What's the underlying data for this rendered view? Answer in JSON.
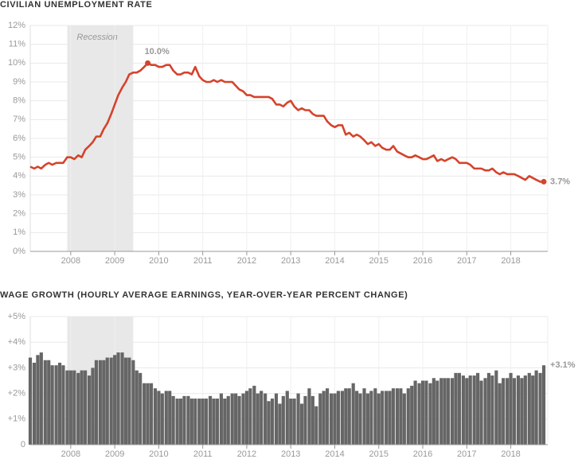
{
  "chart_data": [
    {
      "type": "line",
      "title": "CIVILIAN UNEMPLOYMENT RATE",
      "color": "#d5432b",
      "shading": {
        "label": "Recession",
        "x": [
          2007.92,
          2009.42
        ]
      },
      "x": [
        2007.08,
        2007.17,
        2007.25,
        2007.33,
        2007.42,
        2007.5,
        2007.58,
        2007.67,
        2007.75,
        2007.83,
        2007.92,
        2008,
        2008.08,
        2008.17,
        2008.25,
        2008.33,
        2008.42,
        2008.5,
        2008.58,
        2008.67,
        2008.75,
        2008.83,
        2008.92,
        2009,
        2009.08,
        2009.17,
        2009.25,
        2009.33,
        2009.42,
        2009.5,
        2009.58,
        2009.67,
        2009.75,
        2009.83,
        2009.92,
        2010,
        2010.08,
        2010.17,
        2010.25,
        2010.33,
        2010.42,
        2010.5,
        2010.58,
        2010.67,
        2010.75,
        2010.83,
        2010.92,
        2011,
        2011.08,
        2011.17,
        2011.25,
        2011.33,
        2011.42,
        2011.5,
        2011.58,
        2011.67,
        2011.75,
        2011.83,
        2011.92,
        2012,
        2012.08,
        2012.17,
        2012.25,
        2012.33,
        2012.42,
        2012.5,
        2012.58,
        2012.67,
        2012.75,
        2012.83,
        2012.92,
        2013,
        2013.08,
        2013.17,
        2013.25,
        2013.33,
        2013.42,
        2013.5,
        2013.58,
        2013.67,
        2013.75,
        2013.83,
        2013.92,
        2014,
        2014.08,
        2014.17,
        2014.25,
        2014.33,
        2014.42,
        2014.5,
        2014.58,
        2014.67,
        2014.75,
        2014.83,
        2014.92,
        2015,
        2015.08,
        2015.17,
        2015.25,
        2015.33,
        2015.42,
        2015.5,
        2015.58,
        2015.67,
        2015.75,
        2015.83,
        2015.92,
        2016,
        2016.08,
        2016.17,
        2016.25,
        2016.33,
        2016.42,
        2016.5,
        2016.58,
        2016.67,
        2016.75,
        2016.83,
        2016.92,
        2017,
        2017.08,
        2017.17,
        2017.25,
        2017.33,
        2017.42,
        2017.5,
        2017.58,
        2017.67,
        2017.75,
        2017.83,
        2017.92,
        2018,
        2018.08,
        2018.17,
        2018.25,
        2018.33,
        2018.42,
        2018.5,
        2018.58,
        2018.67,
        2018.75
      ],
      "values": [
        4.5,
        4.4,
        4.5,
        4.4,
        4.6,
        4.7,
        4.6,
        4.7,
        4.7,
        4.7,
        5.0,
        5.0,
        4.9,
        5.1,
        5.0,
        5.4,
        5.6,
        5.8,
        6.1,
        6.1,
        6.5,
        6.8,
        7.3,
        7.8,
        8.3,
        8.7,
        9.0,
        9.4,
        9.5,
        9.5,
        9.6,
        9.8,
        10.0,
        9.9,
        9.9,
        9.8,
        9.8,
        9.9,
        9.9,
        9.6,
        9.4,
        9.4,
        9.5,
        9.5,
        9.4,
        9.8,
        9.3,
        9.1,
        9.0,
        9.0,
        9.1,
        9.0,
        9.1,
        9.0,
        9.0,
        9.0,
        8.8,
        8.6,
        8.5,
        8.3,
        8.3,
        8.2,
        8.2,
        8.2,
        8.2,
        8.2,
        8.1,
        7.8,
        7.8,
        7.7,
        7.9,
        8.0,
        7.7,
        7.5,
        7.6,
        7.5,
        7.5,
        7.3,
        7.2,
        7.2,
        7.2,
        6.9,
        6.7,
        6.6,
        6.7,
        6.7,
        6.2,
        6.3,
        6.1,
        6.2,
        6.1,
        5.9,
        5.7,
        5.8,
        5.6,
        5.7,
        5.5,
        5.4,
        5.4,
        5.6,
        5.3,
        5.2,
        5.1,
        5.0,
        5.0,
        5.1,
        5.0,
        4.9,
        4.9,
        5.0,
        5.1,
        4.8,
        4.9,
        4.8,
        4.9,
        5.0,
        4.9,
        4.7,
        4.7,
        4.7,
        4.6,
        4.4,
        4.4,
        4.4,
        4.3,
        4.3,
        4.4,
        4.2,
        4.1,
        4.2,
        4.1,
        4.1,
        4.1,
        4.0,
        3.9,
        3.8,
        4.0,
        3.9,
        3.8,
        3.7,
        3.7
      ],
      "value_labels": [
        null,
        null,
        null,
        null,
        null,
        null,
        null,
        null,
        null,
        null,
        null,
        null,
        null,
        null,
        null,
        null,
        null,
        null,
        null,
        null,
        null,
        null,
        null,
        null,
        null,
        null,
        null,
        null,
        null,
        null,
        null,
        null,
        "10.0%",
        null,
        null,
        null,
        null,
        null,
        null,
        null,
        null,
        null,
        null,
        null,
        null,
        null,
        null,
        null,
        null,
        null,
        null,
        null,
        null,
        null,
        null,
        null,
        null,
        null,
        null,
        null,
        null,
        null,
        null,
        null,
        null,
        null,
        null,
        null,
        null,
        null,
        null,
        null,
        null,
        null,
        null,
        null,
        null,
        null,
        null,
        null,
        null,
        null,
        null,
        null,
        null,
        null,
        null,
        null,
        null,
        null,
        null,
        null,
        null,
        null,
        null,
        null,
        null,
        null,
        null,
        null,
        null,
        null,
        null,
        null,
        null,
        null,
        null,
        null,
        null,
        null,
        null,
        null,
        null,
        null,
        null,
        null,
        null,
        null,
        null,
        null,
        null,
        null,
        null,
        null,
        null,
        null,
        null,
        null,
        null,
        null,
        null,
        null,
        null,
        null,
        null,
        null,
        null,
        null,
        null,
        null,
        "3.7%"
      ],
      "xlim": [
        2007.08,
        2018.84
      ],
      "xticks": [
        2008,
        2009,
        2010,
        2011,
        2012,
        2013,
        2014,
        2015,
        2016,
        2017,
        2018
      ],
      "ylim": [
        0,
        12
      ],
      "yticks": [
        {
          "value": 0,
          "label": "0%"
        },
        {
          "value": 1,
          "label": "1%"
        },
        {
          "value": 2,
          "label": "2%"
        },
        {
          "value": 3,
          "label": "3%"
        },
        {
          "value": 4,
          "label": "4%"
        },
        {
          "value": 5,
          "label": "5%"
        },
        {
          "value": 6,
          "label": "6%"
        },
        {
          "value": 7,
          "label": "7%"
        },
        {
          "value": 8,
          "label": "8%"
        },
        {
          "value": 9,
          "label": "9%"
        },
        {
          "value": 10,
          "label": "10%"
        },
        {
          "value": 11,
          "label": "11%"
        },
        {
          "value": 12,
          "label": "12%"
        }
      ],
      "grid": true
    },
    {
      "type": "bar",
      "title": "WAGE GROWTH (HOURLY AVERAGE EARNINGS, YEAR-OVER-YEAR PERCENT CHANGE)",
      "color": "#666666",
      "shading": {
        "x": [
          2007.92,
          2009.42
        ]
      },
      "x": [
        2007.08,
        2007.17,
        2007.25,
        2007.33,
        2007.42,
        2007.5,
        2007.58,
        2007.67,
        2007.75,
        2007.83,
        2007.92,
        2008,
        2008.08,
        2008.17,
        2008.25,
        2008.33,
        2008.42,
        2008.5,
        2008.58,
        2008.67,
        2008.75,
        2008.83,
        2008.92,
        2009,
        2009.08,
        2009.17,
        2009.25,
        2009.33,
        2009.42,
        2009.5,
        2009.58,
        2009.67,
        2009.75,
        2009.83,
        2009.92,
        2010,
        2010.08,
        2010.17,
        2010.25,
        2010.33,
        2010.42,
        2010.5,
        2010.58,
        2010.67,
        2010.75,
        2010.83,
        2010.92,
        2011,
        2011.08,
        2011.17,
        2011.25,
        2011.33,
        2011.42,
        2011.5,
        2011.58,
        2011.67,
        2011.75,
        2011.83,
        2011.92,
        2012,
        2012.08,
        2012.17,
        2012.25,
        2012.33,
        2012.42,
        2012.5,
        2012.58,
        2012.67,
        2012.75,
        2012.83,
        2012.92,
        2013,
        2013.08,
        2013.17,
        2013.25,
        2013.33,
        2013.42,
        2013.5,
        2013.58,
        2013.67,
        2013.75,
        2013.83,
        2013.92,
        2014,
        2014.08,
        2014.17,
        2014.25,
        2014.33,
        2014.42,
        2014.5,
        2014.58,
        2014.67,
        2014.75,
        2014.83,
        2014.92,
        2015,
        2015.08,
        2015.17,
        2015.25,
        2015.33,
        2015.42,
        2015.5,
        2015.58,
        2015.67,
        2015.75,
        2015.83,
        2015.92,
        2016,
        2016.08,
        2016.17,
        2016.25,
        2016.33,
        2016.42,
        2016.5,
        2016.58,
        2016.67,
        2016.75,
        2016.83,
        2016.92,
        2017,
        2017.08,
        2017.17,
        2017.25,
        2017.33,
        2017.42,
        2017.5,
        2017.58,
        2017.67,
        2017.75,
        2017.83,
        2017.92,
        2018,
        2018.08,
        2018.17,
        2018.25,
        2018.33,
        2018.42,
        2018.5,
        2018.58,
        2018.67,
        2018.75
      ],
      "values": [
        3.4,
        3.2,
        3.5,
        3.6,
        3.3,
        3.3,
        3.1,
        3.1,
        3.2,
        3.1,
        2.9,
        2.9,
        2.9,
        2.8,
        2.9,
        2.9,
        2.7,
        3.0,
        3.3,
        3.3,
        3.3,
        3.4,
        3.4,
        3.5,
        3.6,
        3.6,
        3.4,
        3.4,
        3.3,
        2.9,
        2.8,
        2.4,
        2.4,
        2.4,
        2.2,
        2.1,
        2.0,
        2.1,
        2.1,
        1.9,
        1.8,
        1.8,
        1.9,
        1.9,
        1.8,
        1.8,
        1.8,
        1.8,
        1.8,
        1.9,
        1.8,
        1.8,
        2.0,
        1.8,
        1.9,
        2.0,
        2.0,
        1.9,
        2.0,
        2.1,
        2.2,
        2.3,
        2.0,
        2.1,
        2.0,
        1.7,
        1.8,
        2.0,
        1.6,
        1.9,
        2.1,
        1.8,
        1.8,
        2.0,
        1.6,
        1.9,
        2.2,
        1.9,
        1.5,
        2.0,
        2.1,
        2.2,
        2.0,
        2.0,
        2.1,
        2.1,
        2.2,
        2.2,
        2.4,
        2.1,
        2.0,
        2.2,
        2.0,
        2.1,
        2.2,
        2.0,
        2.1,
        2.1,
        2.1,
        2.2,
        2.2,
        2.2,
        2.0,
        2.2,
        2.3,
        2.5,
        2.4,
        2.5,
        2.5,
        2.4,
        2.6,
        2.5,
        2.6,
        2.6,
        2.6,
        2.6,
        2.8,
        2.8,
        2.7,
        2.6,
        2.7,
        2.7,
        2.8,
        2.5,
        2.6,
        2.8,
        2.7,
        2.9,
        2.4,
        2.6,
        2.6,
        2.8,
        2.6,
        2.7,
        2.6,
        2.7,
        2.8,
        2.7,
        2.9,
        2.8,
        3.1
      ],
      "value_labels": [
        null,
        null,
        null,
        null,
        null,
        null,
        null,
        null,
        null,
        null,
        null,
        null,
        null,
        null,
        null,
        null,
        null,
        null,
        null,
        null,
        null,
        null,
        null,
        null,
        null,
        null,
        null,
        null,
        null,
        null,
        null,
        null,
        null,
        null,
        null,
        null,
        null,
        null,
        null,
        null,
        null,
        null,
        null,
        null,
        null,
        null,
        null,
        null,
        null,
        null,
        null,
        null,
        null,
        null,
        null,
        null,
        null,
        null,
        null,
        null,
        null,
        null,
        null,
        null,
        null,
        null,
        null,
        null,
        null,
        null,
        null,
        null,
        null,
        null,
        null,
        null,
        null,
        null,
        null,
        null,
        null,
        null,
        null,
        null,
        null,
        null,
        null,
        null,
        null,
        null,
        null,
        null,
        null,
        null,
        null,
        null,
        null,
        null,
        null,
        null,
        null,
        null,
        null,
        null,
        null,
        null,
        null,
        null,
        null,
        null,
        null,
        null,
        null,
        null,
        null,
        null,
        null,
        null,
        null,
        null,
        null,
        null,
        null,
        null,
        null,
        null,
        null,
        null,
        null,
        null,
        null,
        null,
        null,
        null,
        null,
        null,
        null,
        null,
        null,
        null,
        "+3.1%"
      ],
      "xlim": [
        2007.08,
        2018.84
      ],
      "xticks": [
        2008,
        2009,
        2010,
        2011,
        2012,
        2013,
        2014,
        2015,
        2016,
        2017,
        2018
      ],
      "ylim": [
        0,
        5
      ],
      "yticks": [
        0,
        {
          "value": 1,
          "label": "+1%"
        },
        {
          "value": 2,
          "label": "+2%"
        },
        {
          "value": 3,
          "label": "+3%"
        },
        {
          "value": 4,
          "label": "+4%"
        },
        {
          "value": 5,
          "label": "+5%"
        }
      ],
      "grid": true
    }
  ]
}
